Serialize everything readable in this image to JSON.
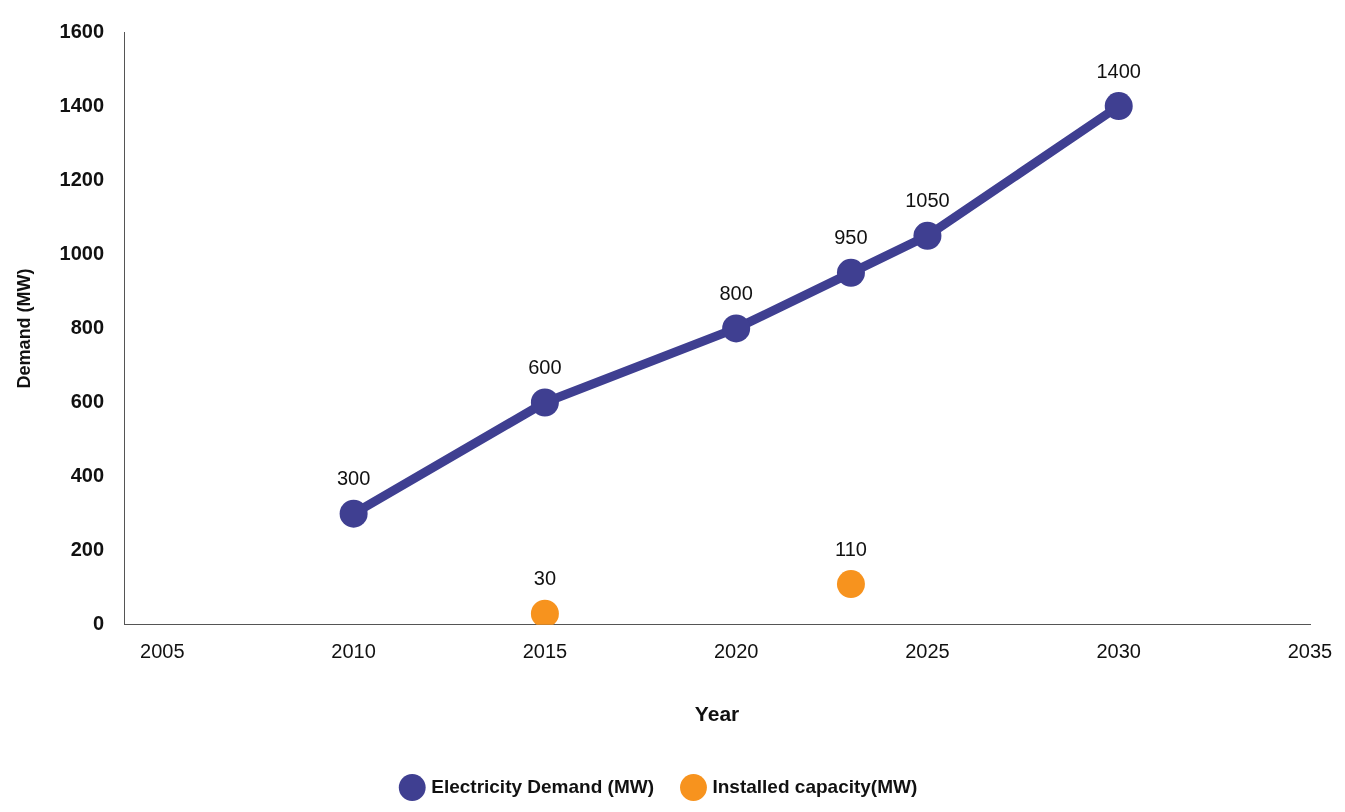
{
  "chart_data": {
    "type": "line",
    "xlabel": "Year",
    "ylabel": "Demand (MW)",
    "xlim": [
      2004,
      2035
    ],
    "xticks": [
      2005,
      2010,
      2015,
      2020,
      2025,
      2030,
      2035
    ],
    "ylim": [
      0,
      1600
    ],
    "yticks": [
      0,
      200,
      400,
      600,
      800,
      1000,
      1200,
      1400,
      1600
    ],
    "series": [
      {
        "name": "Electricity Demand (MW)",
        "color": "#3f3f91",
        "x": [
          2010,
          2015,
          2020,
          2023,
          2025,
          2030
        ],
        "values": [
          300,
          600,
          800,
          950,
          1050,
          1400
        ]
      },
      {
        "name": "Installed capacity(MW)",
        "type": "scatter",
        "color": "#f7931e",
        "x": [
          2015,
          2023
        ],
        "values": [
          30,
          110
        ]
      }
    ],
    "data_labels": true,
    "grid": false,
    "legend": "bottom",
    "marker": "circle",
    "line_style": "solid"
  }
}
